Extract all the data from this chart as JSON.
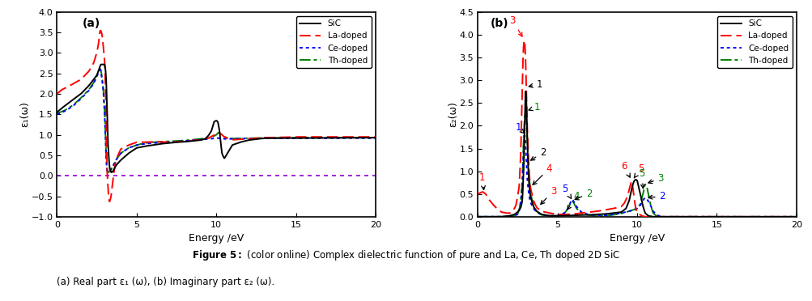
{
  "xlabel": "Energy /eV",
  "ylabel_a": "ε₁(ω)",
  "ylabel_b": "ε₂(ω)",
  "xlim": [
    0,
    20
  ],
  "ylim_a": [
    -1.0,
    4.0
  ],
  "ylim_b": [
    0.0,
    4.5
  ],
  "yticks_a": [
    -1.0,
    -0.5,
    0.0,
    0.5,
    1.0,
    1.5,
    2.0,
    2.5,
    3.0,
    3.5,
    4.0
  ],
  "yticks_b": [
    0.0,
    0.5,
    1.0,
    1.5,
    2.0,
    2.5,
    3.0,
    3.5,
    4.0,
    4.5
  ],
  "xticks": [
    0,
    5,
    10,
    15,
    20
  ],
  "label_a": "(a)",
  "label_b": "(b)",
  "colors": {
    "SiC": "#000000",
    "La": "#ff0000",
    "Ce": "#0000ff",
    "Th": "#008000",
    "zero_line": "#9400d3"
  },
  "background": "#ffffff",
  "fig_caption_bold": "Figure 5:",
  "fig_caption_normal": " (color online) Complex dielectric function of pure and La, Ce, Th doped 2D SiC",
  "fig_caption_line2": "(a) Real part ε₁ (ω), (b) Imaginary part ε₂ (ω)."
}
